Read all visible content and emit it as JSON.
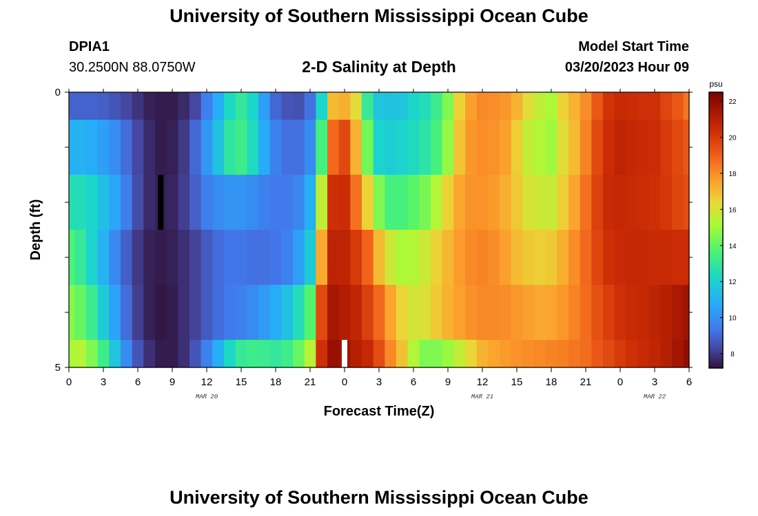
{
  "header": {
    "title": "University of Southern Mississippi Ocean Cube",
    "station_id": "DPIA1",
    "station_coords": "30.2500N  88.0750W",
    "model_label": "Model Start Time",
    "model_value": "03/20/2023 Hour 09"
  },
  "footer": {
    "title": "University of Southern Mississippi Ocean Cube"
  },
  "chart_data": {
    "type": "heatmap",
    "title": "2-D Salinity at Depth",
    "xlabel": "Forecast Time(Z)",
    "ylabel": "Depth (ft)",
    "x_hours": [
      0,
      1,
      2,
      3,
      4,
      5,
      6,
      7,
      8,
      9,
      10,
      11,
      12,
      13,
      14,
      15,
      16,
      17,
      18,
      19,
      20,
      21,
      22,
      23,
      24,
      25,
      26,
      27,
      28,
      29,
      30,
      31,
      32,
      33,
      34,
      35,
      36,
      37,
      38,
      39,
      40,
      41,
      42,
      43,
      44,
      45,
      46,
      47,
      48,
      49,
      50,
      51,
      52,
      53,
      54
    ],
    "depth_levels": [
      0,
      1,
      2,
      3,
      4,
      5
    ],
    "ylim": [
      0,
      5
    ],
    "xlim": [
      0,
      54
    ],
    "x_ticks": [
      "0",
      "3",
      "6",
      "9",
      "12",
      "15",
      "18",
      "21",
      "0",
      "3",
      "6",
      "9",
      "12",
      "15",
      "18",
      "21",
      "0",
      "3",
      "6"
    ],
    "x_tick_hours": [
      0,
      3,
      6,
      9,
      12,
      15,
      18,
      21,
      24,
      27,
      30,
      33,
      36,
      39,
      42,
      45,
      48,
      51,
      54
    ],
    "y_ticks": [
      "0",
      "5"
    ],
    "date_labels": [
      {
        "label": "MAR 20",
        "hour": 12
      },
      {
        "label": "MAR 21",
        "hour": 36
      },
      {
        "label": "MAR 22",
        "hour": 51
      }
    ],
    "colorbar": {
      "unit": "psu",
      "min": 7.2,
      "max": 22.5,
      "ticks": [
        8,
        10,
        12,
        14,
        16,
        18,
        20,
        22
      ],
      "tick_labels": [
        "8",
        "10",
        "12",
        "14",
        "16",
        "18",
        "20",
        "22"
      ]
    },
    "grid": false,
    "values": [
      [
        8.9,
        8.9,
        8.9,
        8.8,
        8.6,
        8.3,
        7.9,
        7.5,
        7.4,
        7.4,
        7.7,
        8.3,
        9.5,
        10.8,
        12.3,
        13.0,
        12.2,
        10.4,
        9.0,
        8.6,
        8.5,
        9.2,
        12.2,
        17.0,
        17.3,
        16.2,
        13.1,
        11.6,
        11.5,
        11.6,
        12.2,
        12.5,
        13.2,
        14.5,
        16.5,
        17.6,
        18.1,
        18.0,
        17.8,
        17.2,
        16.2,
        15.6,
        15.2,
        16.5,
        17.2,
        18.0,
        19.2,
        20.2,
        20.5,
        20.4,
        20.3,
        20.3,
        19.7,
        19.2,
        18.5
      ],
      [
        11.0,
        11.0,
        10.8,
        10.4,
        9.9,
        9.1,
        8.3,
        7.7,
        7.4,
        7.5,
        8.0,
        9.0,
        10.2,
        11.5,
        12.9,
        13.3,
        12.4,
        10.8,
        9.6,
        9.2,
        9.2,
        9.9,
        13.5,
        18.8,
        19.6,
        17.2,
        14.3,
        12.1,
        11.9,
        12.1,
        12.4,
        12.8,
        13.5,
        14.8,
        16.8,
        17.8,
        18.0,
        17.9,
        17.6,
        16.6,
        15.6,
        15.3,
        15.0,
        16.2,
        17.0,
        18.2,
        19.6,
        20.4,
        20.8,
        20.6,
        20.5,
        20.4,
        20.0,
        19.6,
        19.2
      ],
      [
        12.6,
        12.5,
        12.2,
        11.4,
        10.6,
        9.5,
        8.4,
        7.7,
        7.5,
        7.6,
        8.1,
        8.8,
        9.5,
        9.9,
        10.1,
        10.1,
        9.9,
        9.6,
        9.4,
        9.4,
        9.7,
        10.9,
        15.6,
        20.3,
        20.4,
        18.6,
        16.5,
        14.5,
        13.5,
        13.5,
        13.9,
        14.4,
        15.3,
        16.5,
        17.5,
        17.9,
        17.9,
        17.7,
        17.3,
        16.7,
        16.0,
        15.8,
        15.7,
        16.6,
        17.5,
        18.6,
        19.8,
        20.5,
        20.6,
        20.5,
        20.4,
        20.3,
        20.1,
        19.7,
        19.5
      ],
      [
        13.7,
        13.1,
        12.1,
        11.0,
        9.8,
        8.8,
        8.0,
        7.5,
        7.4,
        7.5,
        7.8,
        8.2,
        8.7,
        9.1,
        9.3,
        9.3,
        9.2,
        9.2,
        9.3,
        9.6,
        10.4,
        11.8,
        17.4,
        20.8,
        20.8,
        20.0,
        18.9,
        17.0,
        15.8,
        15.2,
        15.3,
        15.8,
        16.5,
        17.1,
        17.7,
        18.1,
        18.2,
        18.0,
        17.6,
        17.0,
        16.7,
        16.6,
        16.7,
        17.3,
        18.0,
        18.8,
        19.7,
        20.3,
        20.5,
        20.6,
        20.6,
        20.5,
        20.5,
        20.4,
        20.4
      ],
      [
        14.6,
        14.1,
        13.2,
        11.8,
        10.5,
        9.1,
        8.1,
        7.5,
        7.3,
        7.4,
        7.8,
        8.2,
        8.7,
        9.1,
        9.4,
        9.6,
        9.9,
        10.3,
        10.8,
        11.5,
        12.5,
        13.8,
        19.6,
        21.4,
        21.1,
        20.7,
        19.8,
        18.8,
        17.5,
        16.4,
        15.9,
        16.1,
        16.7,
        17.2,
        17.6,
        17.9,
        18.1,
        18.1,
        18.0,
        17.8,
        17.6,
        17.4,
        17.5,
        17.8,
        18.2,
        18.7,
        19.4,
        19.9,
        20.3,
        20.5,
        20.6,
        20.8,
        21.0,
        21.3,
        21.6
      ],
      [
        15.1,
        15.4,
        14.5,
        13.3,
        11.6,
        9.9,
        8.6,
        7.8,
        7.4,
        7.4,
        7.8,
        8.6,
        9.6,
        10.9,
        12.3,
        13.1,
        13.3,
        13.2,
        13.0,
        13.3,
        14.1,
        15.4,
        20.3,
        21.8,
        21.6,
        21.0,
        20.6,
        19.5,
        18.1,
        16.9,
        15.3,
        14.5,
        14.5,
        14.9,
        15.6,
        16.4,
        17.2,
        17.5,
        17.7,
        17.9,
        18.0,
        18.1,
        18.2,
        18.3,
        18.5,
        18.7,
        19.2,
        19.6,
        20.0,
        20.3,
        20.5,
        20.7,
        21.0,
        21.5,
        21.9
      ]
    ],
    "markers": [
      {
        "hour": 8,
        "depth_from": 1.5,
        "depth_to": 2.5,
        "color": "#000000"
      },
      {
        "hour": 24,
        "depth_from": 4.5,
        "depth_to": 5.0,
        "color": "#ffffff"
      }
    ]
  },
  "colors": {
    "axis": "#000000",
    "background": "#ffffff"
  }
}
